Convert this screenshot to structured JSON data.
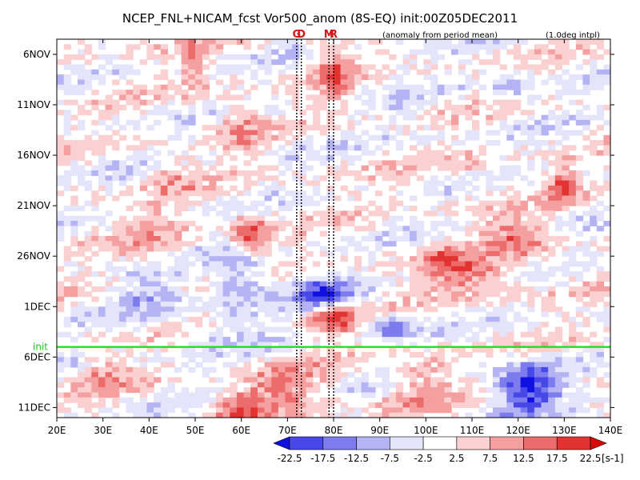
{
  "chart_data": {
    "type": "heatmap",
    "title": "NCEP_FNL+NICAM_fcst Vor500_anom (8S-EQ) init:00Z05DEC2011",
    "subtitle_left": "(anomaly from period mean)",
    "subtitle_right": "(1.0deg intpl)",
    "xlabel": "",
    "ylabel": "",
    "x_ticks": [
      "20E",
      "30E",
      "40E",
      "50E",
      "60E",
      "70E",
      "80E",
      "90E",
      "100E",
      "110E",
      "120E",
      "130E",
      "140E"
    ],
    "x_tick_values": [
      20,
      30,
      40,
      50,
      60,
      70,
      80,
      90,
      100,
      110,
      120,
      130,
      140
    ],
    "xlim": [
      20,
      140
    ],
    "y_ticks": [
      "6NOV",
      "11NOV",
      "16NOV",
      "21NOV",
      "26NOV",
      "1DEC",
      "6DEC",
      "11DEC"
    ],
    "y_tick_values": [
      0,
      5,
      10,
      15,
      20,
      25,
      30,
      35
    ],
    "ylim": [
      -1.5,
      36
    ],
    "markers": [
      {
        "label": "G",
        "lon": 72
      },
      {
        "label": "D",
        "lon": 73
      },
      {
        "label": "M",
        "lon": 79
      },
      {
        "label": "R",
        "lon": 80
      }
    ],
    "init_line": {
      "label": "init",
      "day": 29
    },
    "colorbar": {
      "labels": [
        "-22.5",
        "-17.5",
        "-12.5",
        "-7.5",
        "-2.5",
        "2.5",
        "7.5",
        "12.5",
        "17.5",
        "22.5"
      ],
      "unit": "[s-1]",
      "colors": [
        "#1010e0",
        "#4848e8",
        "#7c7cee",
        "#b4b4f4",
        "#e4e4fa",
        "#ffffff",
        "#fbd0d0",
        "#f4a0a0",
        "#ec6c6c",
        "#e23232",
        "#d80808"
      ]
    }
  }
}
